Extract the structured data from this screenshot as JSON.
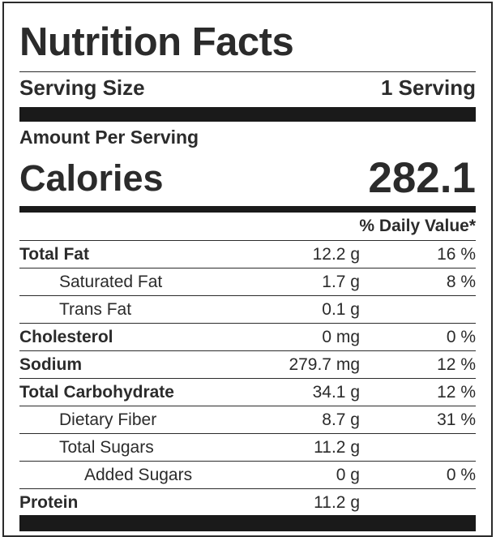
{
  "title": "Nutrition Facts",
  "serving_size": {
    "label": "Serving Size",
    "value": "1 Serving"
  },
  "amount_per_serving": "Amount Per Serving",
  "calories": {
    "label": "Calories",
    "value": "282.1"
  },
  "daily_value_header": "% Daily Value*",
  "nutrients": [
    {
      "name": "Total Fat",
      "amount": "12.2 g",
      "dv": "16 %"
    },
    {
      "name": "Saturated Fat",
      "amount": "1.7 g",
      "dv": "8 %"
    },
    {
      "name": "Trans Fat",
      "amount": "0.1 g",
      "dv": ""
    },
    {
      "name": "Cholesterol",
      "amount": "0 mg",
      "dv": "0 %"
    },
    {
      "name": "Sodium",
      "amount": "279.7 mg",
      "dv": "12 %"
    },
    {
      "name": "Total Carbohydrate",
      "amount": "34.1 g",
      "dv": "12 %"
    },
    {
      "name": "Dietary Fiber",
      "amount": "8.7 g",
      "dv": "31 %"
    },
    {
      "name": "Total Sugars",
      "amount": "11.2 g",
      "dv": ""
    },
    {
      "name": "Added Sugars",
      "amount": "0 g",
      "dv": "0 %"
    },
    {
      "name": "Protein",
      "amount": "11.2 g",
      "dv": ""
    }
  ]
}
